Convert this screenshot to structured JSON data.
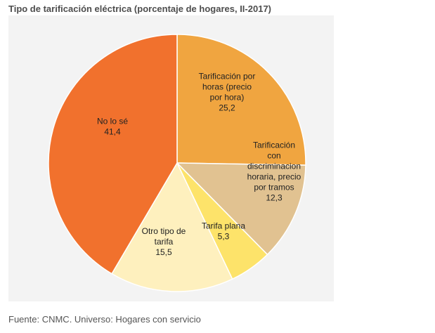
{
  "title": "Tipo de tarificación eléctrica (porcentaje de hogares, II-2017)",
  "source": "Fuente: CNMC. Universo: Hogares con servicio",
  "chart_data": {
    "type": "pie",
    "title": "Tipo de tarificación eléctrica (porcentaje de hogares, II-2017)",
    "slices": [
      {
        "lines": [
          "Tarificación  por",
          "horas  (precio",
          "por hora)"
        ],
        "value": 25.2,
        "value_label": "25,2",
        "color": "#f0a540"
      },
      {
        "lines": [
          "Tarificación",
          "con",
          "discriminacion",
          "horaria,  precio",
          "por tramos"
        ],
        "value": 12.3,
        "value_label": "12,3",
        "color": "#e1c291"
      },
      {
        "lines": [
          "Tarifa  plana"
        ],
        "value": 5.3,
        "value_label": "5,3",
        "color": "#fde36a"
      },
      {
        "lines": [
          "Otro tipo de",
          "tarifa"
        ],
        "value": 15.5,
        "value_label": "15,5",
        "color": "#fef0be"
      },
      {
        "lines": [
          "No lo sé"
        ],
        "value": 41.4,
        "value_label": "41,4",
        "color": "#f1712d"
      }
    ],
    "start_angle_deg": 0,
    "direction": "clockwise"
  }
}
